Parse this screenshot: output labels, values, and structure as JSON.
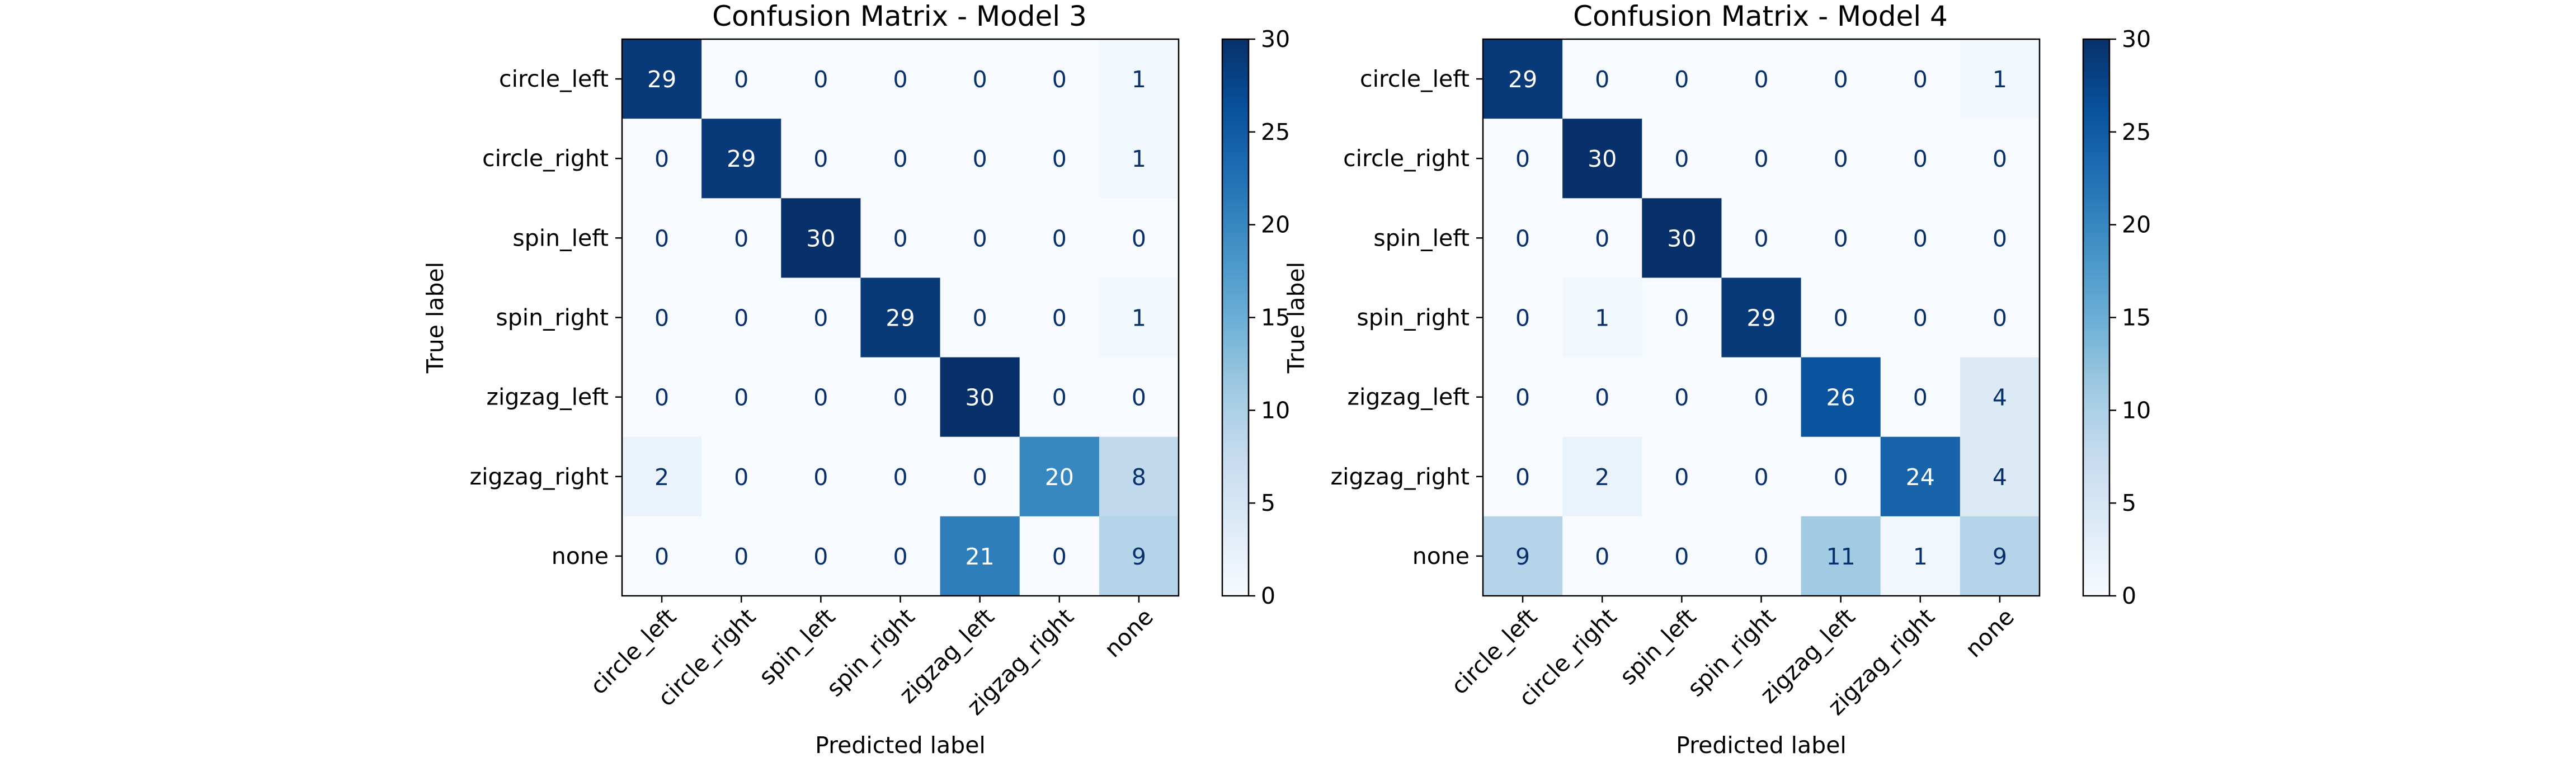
{
  "chart_data": [
    {
      "type": "heatmap",
      "title": "Confusion Matrix - Model 3",
      "xlabel": "Predicted label",
      "ylabel": "True label",
      "x_categories": [
        "circle_left",
        "circle_right",
        "spin_left",
        "spin_right",
        "zigzag_left",
        "zigzag_right",
        "none"
      ],
      "y_categories": [
        "circle_left",
        "circle_right",
        "spin_left",
        "spin_right",
        "zigzag_left",
        "zigzag_right",
        "none"
      ],
      "values": [
        [
          29,
          0,
          0,
          0,
          0,
          0,
          1
        ],
        [
          0,
          29,
          0,
          0,
          0,
          0,
          1
        ],
        [
          0,
          0,
          30,
          0,
          0,
          0,
          0
        ],
        [
          0,
          0,
          0,
          29,
          0,
          0,
          1
        ],
        [
          0,
          0,
          0,
          0,
          30,
          0,
          0
        ],
        [
          2,
          0,
          0,
          0,
          0,
          20,
          8
        ],
        [
          0,
          0,
          0,
          0,
          21,
          0,
          9
        ]
      ],
      "colorbar": {
        "range": [
          0,
          30
        ],
        "ticks": [
          "0",
          "5",
          "10",
          "15",
          "20",
          "25",
          "30"
        ]
      },
      "colormap": "Blues"
    },
    {
      "type": "heatmap",
      "title": "Confusion Matrix - Model 4",
      "xlabel": "Predicted label",
      "ylabel": "True label",
      "x_categories": [
        "circle_left",
        "circle_right",
        "spin_left",
        "spin_right",
        "zigzag_left",
        "zigzag_right",
        "none"
      ],
      "y_categories": [
        "circle_left",
        "circle_right",
        "spin_left",
        "spin_right",
        "zigzag_left",
        "zigzag_right",
        "none"
      ],
      "values": [
        [
          29,
          0,
          0,
          0,
          0,
          0,
          1
        ],
        [
          0,
          30,
          0,
          0,
          0,
          0,
          0
        ],
        [
          0,
          0,
          30,
          0,
          0,
          0,
          0
        ],
        [
          0,
          1,
          0,
          29,
          0,
          0,
          0
        ],
        [
          0,
          0,
          0,
          0,
          26,
          0,
          4
        ],
        [
          0,
          2,
          0,
          0,
          0,
          24,
          4
        ],
        [
          9,
          0,
          0,
          0,
          11,
          1,
          9
        ]
      ],
      "colorbar": {
        "range": [
          0,
          30
        ],
        "ticks": [
          "0",
          "5",
          "10",
          "15",
          "20",
          "25",
          "30"
        ]
      },
      "colormap": "Blues"
    }
  ]
}
